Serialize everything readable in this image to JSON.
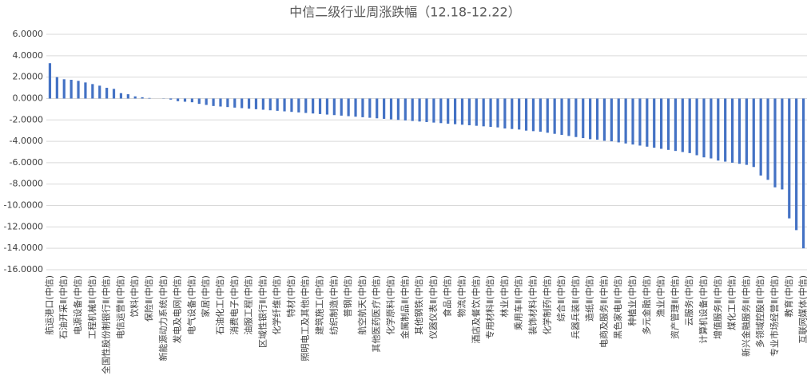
{
  "chart_data": {
    "type": "bar",
    "title": "中信二级行业周涨跌幅（12.18-12.22）",
    "color": "#4472c4",
    "grid": true,
    "ylim": [
      -16,
      6
    ],
    "yticks": [
      {
        "value": 6,
        "label": "6.0000"
      },
      {
        "value": 4,
        "label": "4.0000"
      },
      {
        "value": 2,
        "label": "2.0000"
      },
      {
        "value": 0,
        "label": "0.0000"
      },
      {
        "value": -2,
        "label": "-2.0000"
      },
      {
        "value": -4,
        "label": "-4.0000"
      },
      {
        "value": -6,
        "label": "-6.0000"
      },
      {
        "value": -8,
        "label": "-8.0000"
      },
      {
        "value": -10,
        "label": "-10.0000"
      },
      {
        "value": -12,
        "label": "-12.0000"
      },
      {
        "value": -14,
        "label": "-14.0000"
      },
      {
        "value": -16,
        "label": "-16.0000"
      }
    ],
    "categories": [
      "航运港口(中信)",
      null,
      "石油开采Ⅱ(中信)",
      null,
      "电源设备(中信)",
      null,
      "工程机械Ⅱ(中信)",
      null,
      "全国性股份制银行Ⅱ(中信)",
      null,
      "电信运营Ⅱ(中信)",
      null,
      "饮料(中信)",
      null,
      "保险Ⅱ(中信)",
      null,
      "新能源动力系统(中信)",
      null,
      "发电及电网(中信)",
      null,
      "电气设备(中信)",
      null,
      "家居(中信)",
      null,
      "石油化工(中信)",
      null,
      "消费电子(中信)",
      null,
      "油服工程(中信)",
      null,
      "区域性银行Ⅱ(中信)",
      null,
      "化学纤维(中信)",
      null,
      "特材(中信)",
      null,
      "照明电工及其他(中信)",
      null,
      "建筑施工(中信)",
      null,
      "纺织制造(中信)",
      null,
      "普钢(中信)",
      null,
      "航空航天(中信)",
      null,
      "其他医药医疗(中信)",
      null,
      "化学原料(中信)",
      null,
      "金属制品Ⅱ(中信)",
      null,
      "其他钢铁(中信)",
      null,
      "仪器仪表Ⅱ(中信)",
      null,
      "食品(中信)",
      null,
      "物流(中信)",
      null,
      "酒店及餐饮(中信)",
      null,
      "专用材料Ⅱ(中信)",
      null,
      "林业(中信)",
      null,
      "乘用车Ⅱ(中信)",
      null,
      "装饰材料(中信)",
      null,
      "化学制药(中信)",
      null,
      "综合Ⅱ(中信)",
      null,
      "兵器兵装Ⅱ(中信)",
      null,
      "造纸Ⅱ(中信)",
      null,
      "电商及服务Ⅱ(中信)",
      null,
      "黑色家电Ⅱ(中信)",
      null,
      "种植业(中信)",
      null,
      "多元金融(中信)",
      null,
      "渔业(中信)",
      null,
      "资产管理Ⅱ(中信)",
      null,
      "云服务(中信)",
      null,
      "计算机设备(中信)",
      null,
      "增值服务Ⅱ(中信)",
      null,
      "煤化工Ⅱ(中信)",
      null,
      "新兴金融服务Ⅱ(中信)",
      null,
      "多领域控股Ⅱ(中信)",
      null,
      "专业市场经营Ⅱ(中信)",
      null,
      "教育(中信)",
      null,
      "互联网媒体(中信)"
    ],
    "values": [
      3.3,
      2.0,
      1.8,
      1.75,
      1.65,
      1.5,
      1.35,
      1.2,
      1.0,
      0.9,
      0.5,
      0.4,
      0.2,
      0.12,
      0.05,
      0.0,
      -0.02,
      -0.1,
      -0.25,
      -0.3,
      -0.35,
      -0.5,
      -0.6,
      -0.7,
      -0.75,
      -0.8,
      -0.85,
      -0.9,
      -0.95,
      -1.0,
      -1.05,
      -1.1,
      -1.15,
      -1.2,
      -1.25,
      -1.3,
      -1.35,
      -1.4,
      -1.45,
      -1.5,
      -1.55,
      -1.6,
      -1.65,
      -1.7,
      -1.75,
      -1.8,
      -1.85,
      -1.9,
      -1.95,
      -2.0,
      -2.05,
      -2.1,
      -2.15,
      -2.2,
      -2.25,
      -2.3,
      -2.35,
      -2.4,
      -2.45,
      -2.5,
      -2.55,
      -2.6,
      -2.65,
      -2.7,
      -2.8,
      -2.85,
      -2.9,
      -3.0,
      -3.05,
      -3.1,
      -3.2,
      -3.3,
      -3.4,
      -3.5,
      -3.6,
      -3.7,
      -3.8,
      -3.85,
      -3.95,
      -4.0,
      -4.1,
      -4.2,
      -4.3,
      -4.4,
      -4.5,
      -4.6,
      -4.7,
      -4.8,
      -4.9,
      -5.0,
      -5.1,
      -5.3,
      -5.5,
      -5.6,
      -5.8,
      -5.9,
      -6.0,
      -6.1,
      -6.2,
      -6.4,
      -7.2,
      -7.6,
      -8.3,
      -8.5,
      -11.2,
      -12.3,
      -14.0
    ]
  }
}
